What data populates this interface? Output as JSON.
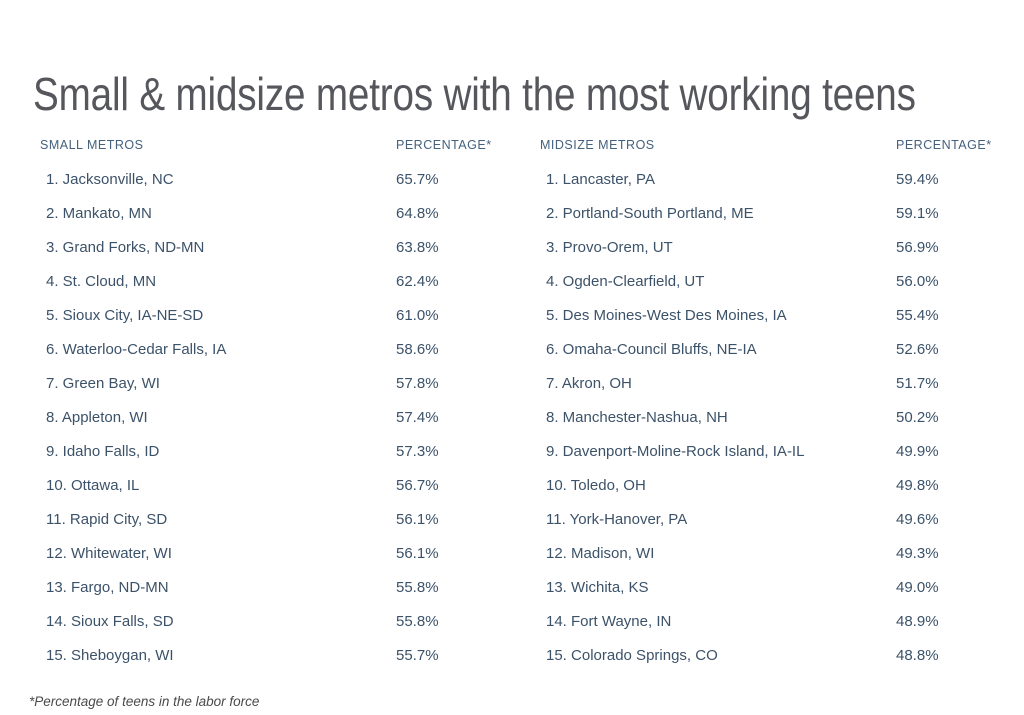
{
  "page": {
    "title": "Small & midsize metros with the most working teens",
    "footnote": "*Percentage of teens in the labor force"
  },
  "colors": {
    "background": "#ffffff",
    "title_text": "#56575c",
    "column_header_text": "#44617e",
    "row_text": "#3c5269",
    "footnote_text": "#4a4a4c"
  },
  "chart_data": [
    {
      "type": "table",
      "title": "Small & midsize metros with the most working teens",
      "columns": [
        "SMALL METROS",
        "PERCENTAGE*"
      ],
      "rows": [
        [
          "1. Jacksonville, NC",
          "65.7%"
        ],
        [
          "2. Mankato, MN",
          "64.8%"
        ],
        [
          "3. Grand Forks, ND-MN",
          "63.8%"
        ],
        [
          "4. St. Cloud, MN",
          "62.4%"
        ],
        [
          "5. Sioux City, IA-NE-SD",
          "61.0%"
        ],
        [
          "6. Waterloo-Cedar Falls, IA",
          "58.6%"
        ],
        [
          "7. Green Bay, WI",
          "57.8%"
        ],
        [
          "8. Appleton, WI",
          "57.4%"
        ],
        [
          "9. Idaho Falls, ID",
          "57.3%"
        ],
        [
          "10. Ottawa, IL",
          "56.7%"
        ],
        [
          "11. Rapid City, SD",
          "56.1%"
        ],
        [
          "12. Whitewater, WI",
          "56.1%"
        ],
        [
          "13. Fargo, ND-MN",
          "55.8%"
        ],
        [
          "14. Sioux Falls, SD",
          "55.8%"
        ],
        [
          "15. Sheboygan, WI",
          "55.7%"
        ]
      ]
    },
    {
      "type": "table",
      "title": "Small & midsize metros with the most working teens",
      "columns": [
        "MIDSIZE METROS",
        "PERCENTAGE*"
      ],
      "rows": [
        [
          "1. Lancaster, PA",
          "59.4%"
        ],
        [
          "2. Portland-South Portland, ME",
          "59.1%"
        ],
        [
          "3. Provo-Orem, UT",
          "56.9%"
        ],
        [
          "4. Ogden-Clearfield, UT",
          "56.0%"
        ],
        [
          "5. Des Moines-West Des Moines, IA",
          "55.4%"
        ],
        [
          "6. Omaha-Council Bluffs, NE-IA",
          "52.6%"
        ],
        [
          "7. Akron, OH",
          "51.7%"
        ],
        [
          "8. Manchester-Nashua, NH",
          "50.2%"
        ],
        [
          "9. Davenport-Moline-Rock Island, IA-IL",
          "49.9%"
        ],
        [
          "10. Toledo, OH",
          "49.8%"
        ],
        [
          "11. York-Hanover, PA",
          "49.6%"
        ],
        [
          "12. Madison, WI",
          "49.3%"
        ],
        [
          "13. Wichita, KS",
          "49.0%"
        ],
        [
          "14. Fort Wayne, IN",
          "48.9%"
        ],
        [
          "15. Colorado Springs, CO",
          "48.8%"
        ]
      ]
    }
  ]
}
